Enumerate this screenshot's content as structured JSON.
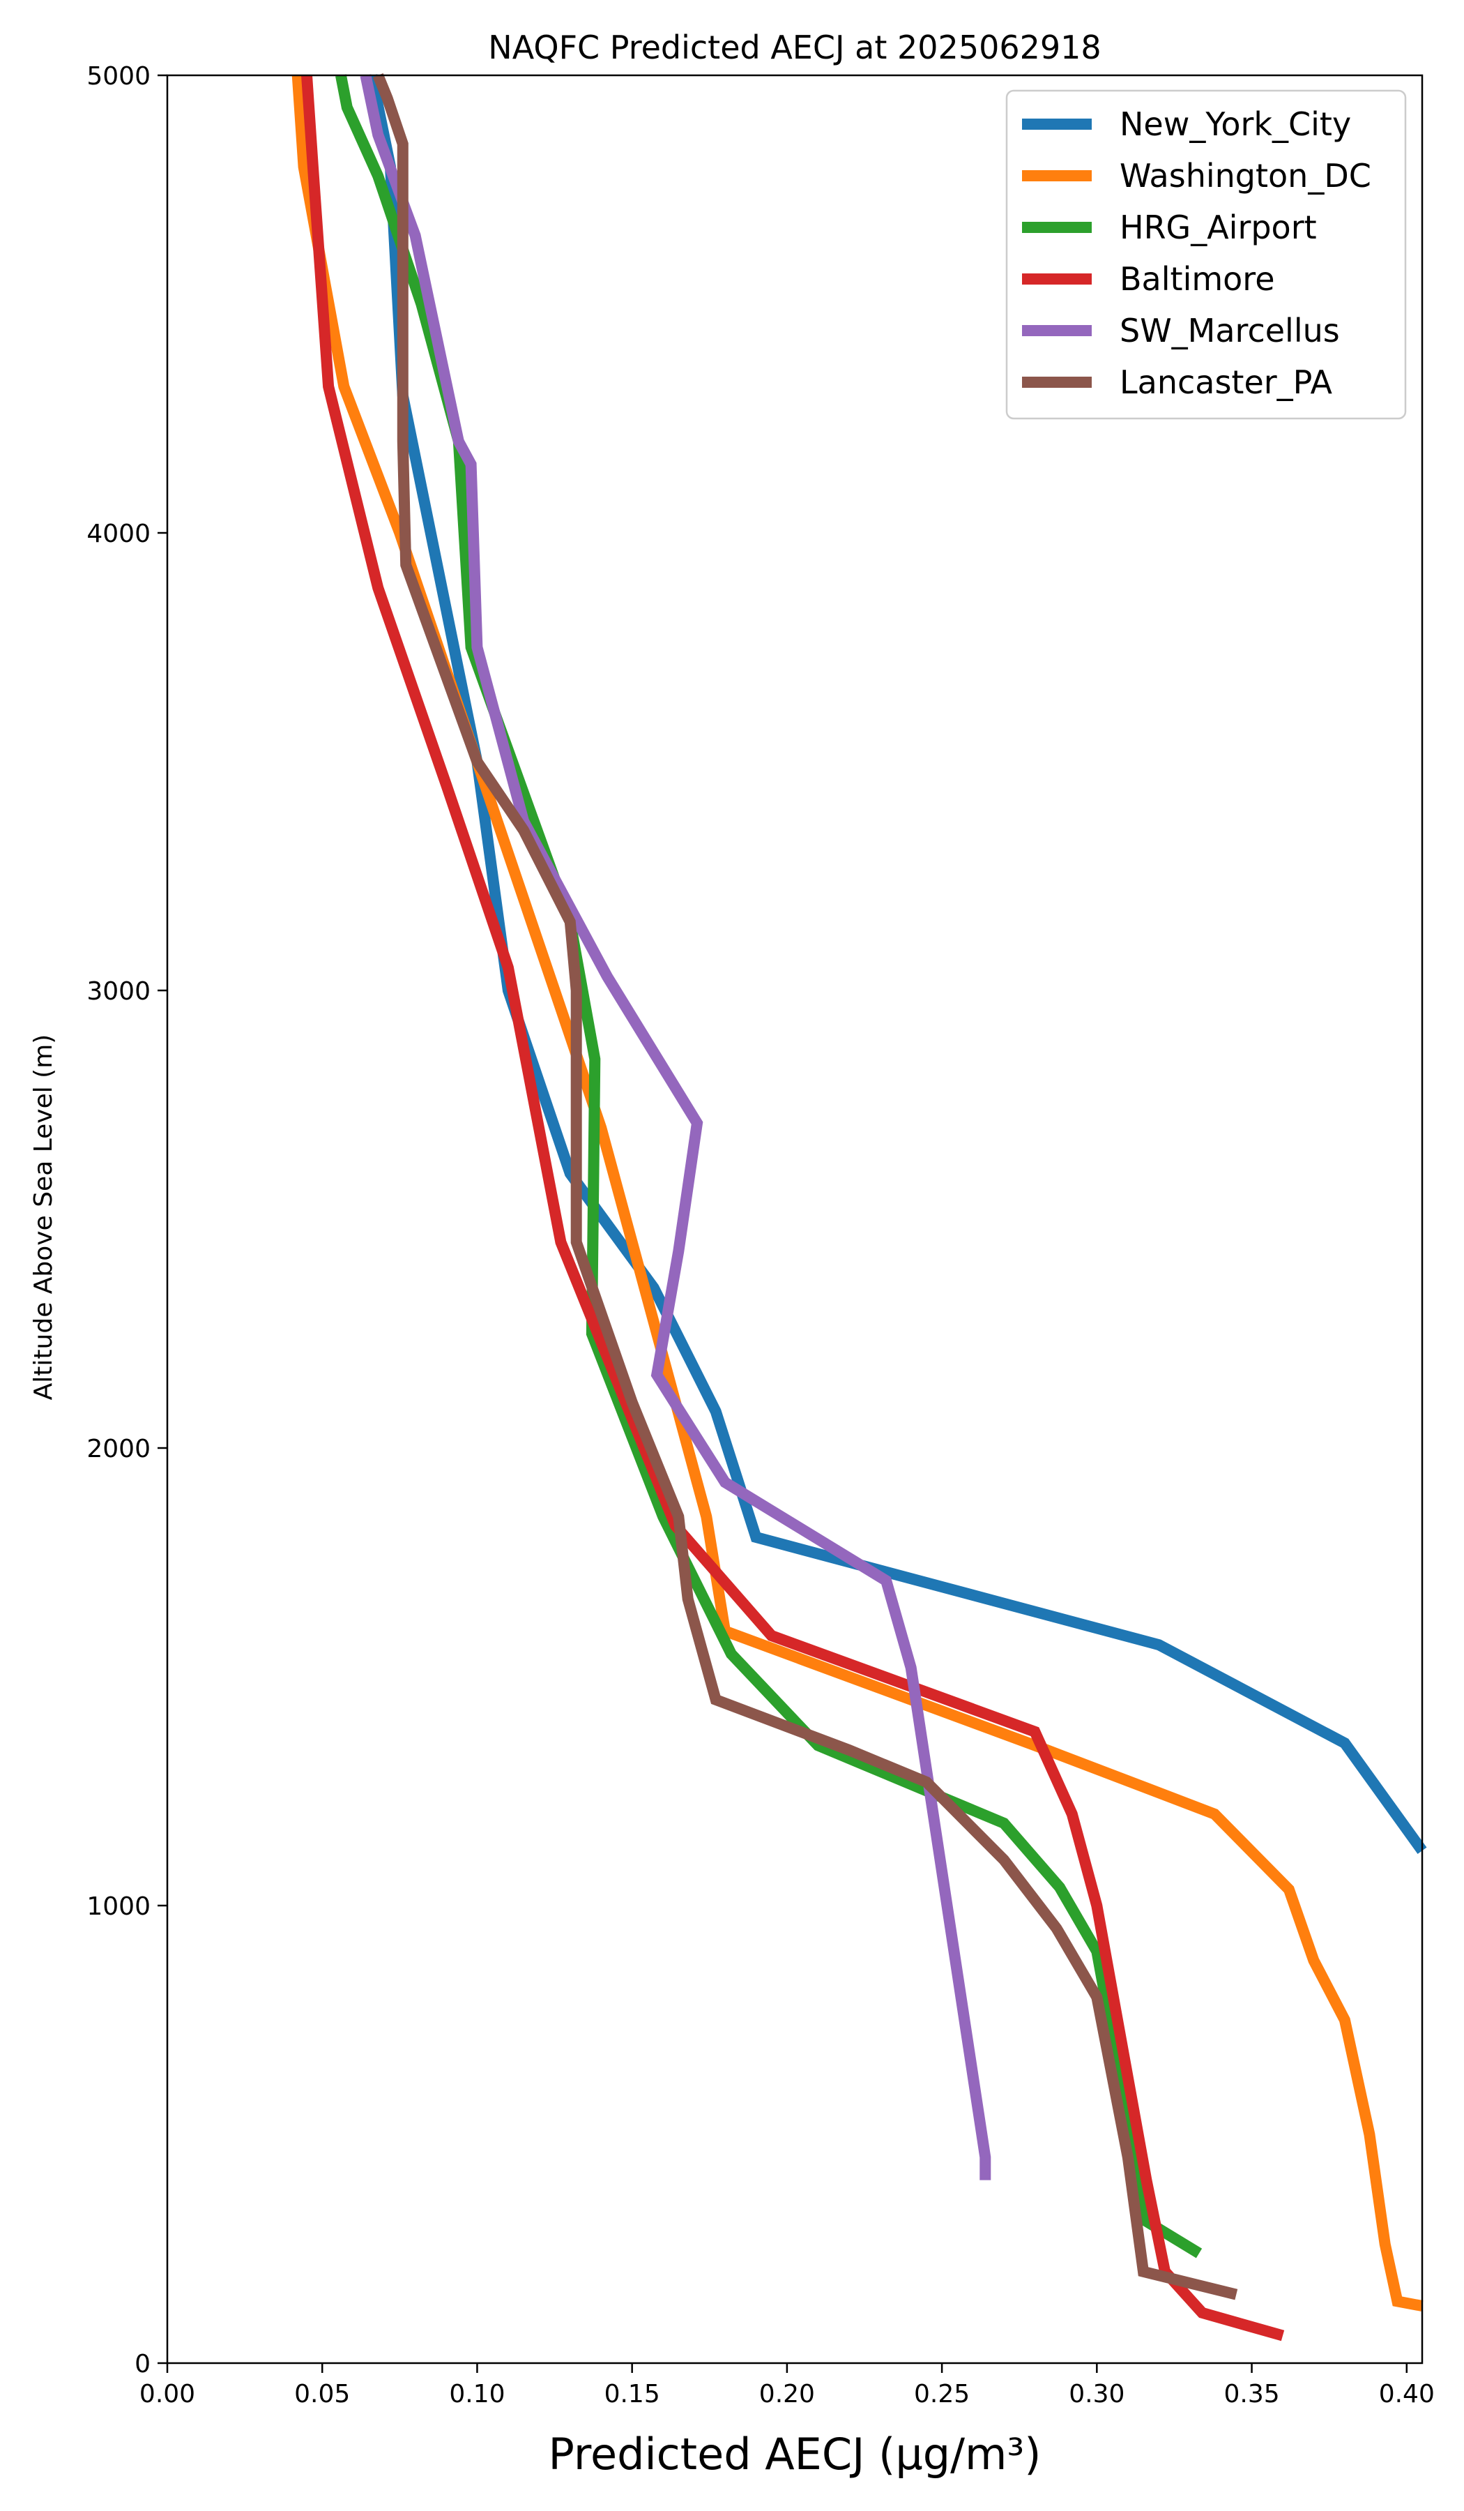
{
  "chart_data": {
    "type": "line",
    "title": "NAQFC Predicted AECJ at 2025062918",
    "xlabel": "Predicted AECJ (μg/m³)",
    "ylabel": "Altitude Above Sea Level (m)",
    "xlim": [
      0.0,
      0.405
    ],
    "ylim": [
      0,
      5000
    ],
    "xticks": [
      "0.00",
      "0.05",
      "0.10",
      "0.15",
      "0.20",
      "0.25",
      "0.30",
      "0.35",
      "0.40"
    ],
    "xtick_values": [
      0.0,
      0.05,
      0.1,
      0.15,
      0.2,
      0.25,
      0.3,
      0.35,
      0.4
    ],
    "yticks": [
      "0",
      "1000",
      "2000",
      "3000",
      "4000",
      "5000"
    ],
    "ytick_values": [
      0,
      1000,
      2000,
      3000,
      4000,
      5000
    ],
    "grid": false,
    "legend_position": "top-right",
    "series": [
      {
        "name": "New_York_City",
        "color": "#1f77b4",
        "x": [
          0.405,
          0.38,
          0.32,
          0.19,
          0.177,
          0.157,
          0.13,
          0.11,
          0.1,
          0.076,
          0.072,
          0.066
        ],
        "y": [
          1120,
          1355,
          1570,
          1805,
          2080,
          2350,
          2600,
          3000,
          3500,
          4300,
          4800,
          5000
        ]
      },
      {
        "name": "Washington_DC",
        "color": "#ff7f0e",
        "x": [
          0.405,
          0.397,
          0.393,
          0.388,
          0.38,
          0.37,
          0.362,
          0.338,
          0.28,
          0.18,
          0.174,
          0.16,
          0.14,
          0.125,
          0.1,
          0.075,
          0.057,
          0.044,
          0.042
        ],
        "y": [
          125,
          135,
          260,
          500,
          750,
          880,
          1035,
          1200,
          1350,
          1600,
          1850,
          2200,
          2700,
          3000,
          3500,
          4000,
          4320,
          4800,
          5000
        ]
      },
      {
        "name": "HRG_Airport",
        "color": "#2ca02c",
        "x": [
          0.333,
          0.316,
          0.3,
          0.288,
          0.27,
          0.21,
          0.182,
          0.16,
          0.137,
          0.138,
          0.13,
          0.098,
          0.094,
          0.082,
          0.068,
          0.058,
          0.056
        ],
        "y": [
          240,
          310,
          900,
          1040,
          1180,
          1350,
          1550,
          1850,
          2250,
          2850,
          3150,
          3750,
          4200,
          4500,
          4780,
          4930,
          5000
        ]
      },
      {
        "name": "Baltimore",
        "color": "#d62728",
        "x": [
          0.36,
          0.334,
          0.322,
          0.316,
          0.3,
          0.292,
          0.28,
          0.195,
          0.164,
          0.127,
          0.11,
          0.09,
          0.068,
          0.052,
          0.047,
          0.045
        ],
        "y": [
          60,
          110,
          200,
          400,
          1000,
          1200,
          1380,
          1590,
          1830,
          2450,
          3050,
          3450,
          3880,
          4320,
          4800,
          5000
        ]
      },
      {
        "name": "SW_Marcellus",
        "color": "#9467bd",
        "x": [
          0.264,
          0.264,
          0.24,
          0.232,
          0.18,
          0.158,
          0.165,
          0.171,
          0.142,
          0.115,
          0.1,
          0.098,
          0.094,
          0.08,
          0.068,
          0.064
        ],
        "y": [
          400,
          450,
          1520,
          1710,
          1925,
          2160,
          2430,
          2710,
          3030,
          3370,
          3750,
          4150,
          4200,
          4650,
          4870,
          5000
        ]
      },
      {
        "name": "Lancaster_PA",
        "color": "#8c564b",
        "x": [
          0.345,
          0.315,
          0.31,
          0.3,
          0.287,
          0.27,
          0.245,
          0.22,
          0.177,
          0.168,
          0.165,
          0.15,
          0.132,
          0.132,
          0.13,
          0.115,
          0.1,
          0.077,
          0.076,
          0.076,
          0.071,
          0.068
        ],
        "y": [
          150,
          200,
          450,
          800,
          950,
          1100,
          1270,
          1340,
          1450,
          1670,
          1850,
          2100,
          2450,
          3000,
          3150,
          3350,
          3500,
          3930,
          4200,
          4850,
          4950,
          5000
        ]
      }
    ]
  }
}
